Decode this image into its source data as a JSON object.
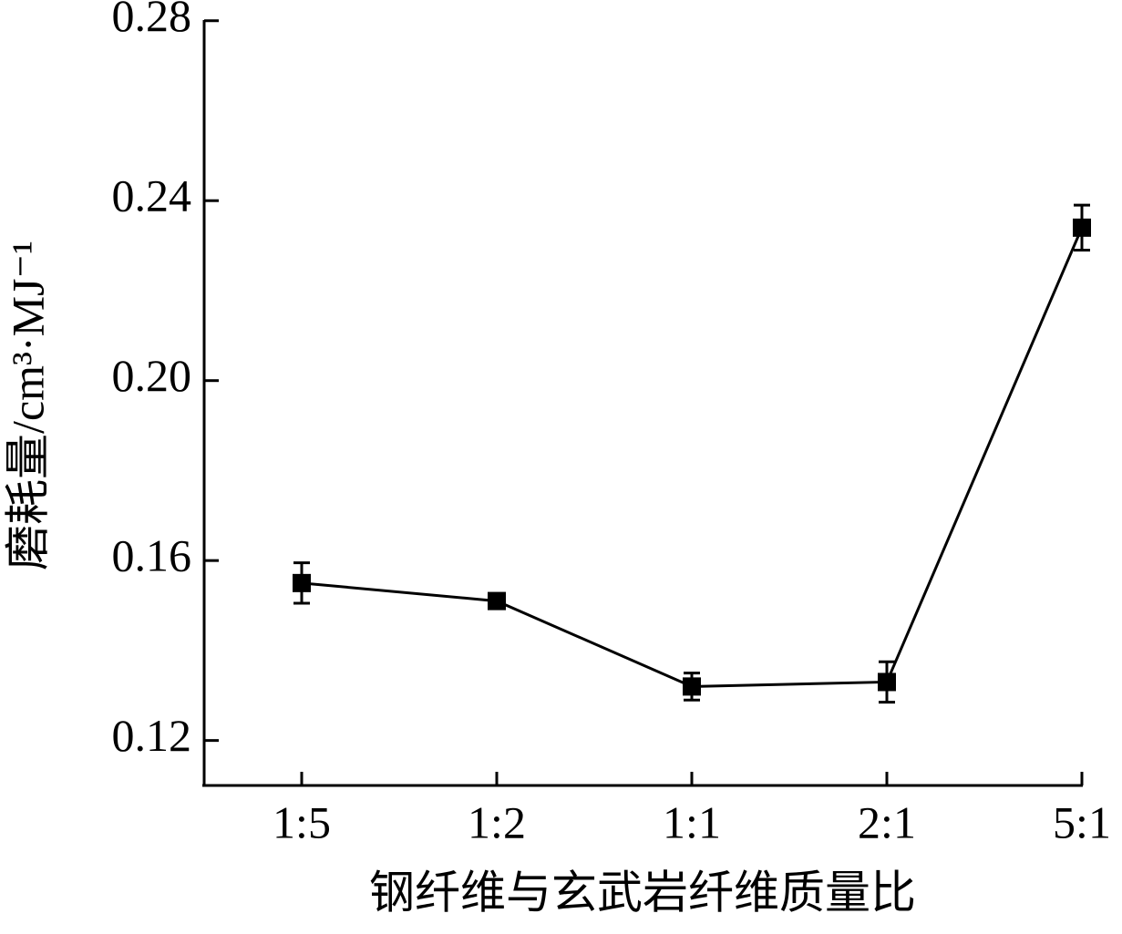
{
  "chart_data": {
    "type": "line",
    "xlabel": "钢纤维与玄武岩纤维质量比",
    "ylabel": "磨耗量/cm³·MJ⁻¹",
    "categories": [
      "1:5",
      "1:2",
      "1:1",
      "2:1",
      "5:1"
    ],
    "series": [
      {
        "values": [
          0.155,
          0.151,
          0.132,
          0.133,
          0.234
        ],
        "errors": [
          0.0045,
          0.001,
          0.003,
          0.0045,
          0.005
        ],
        "color": "#000000"
      }
    ],
    "ylim": [
      0.11,
      0.28
    ],
    "yticks": [
      0.12,
      0.16,
      {
        "value": 0.2,
        "label": "0.20"
      },
      0.24,
      0.28
    ]
  }
}
